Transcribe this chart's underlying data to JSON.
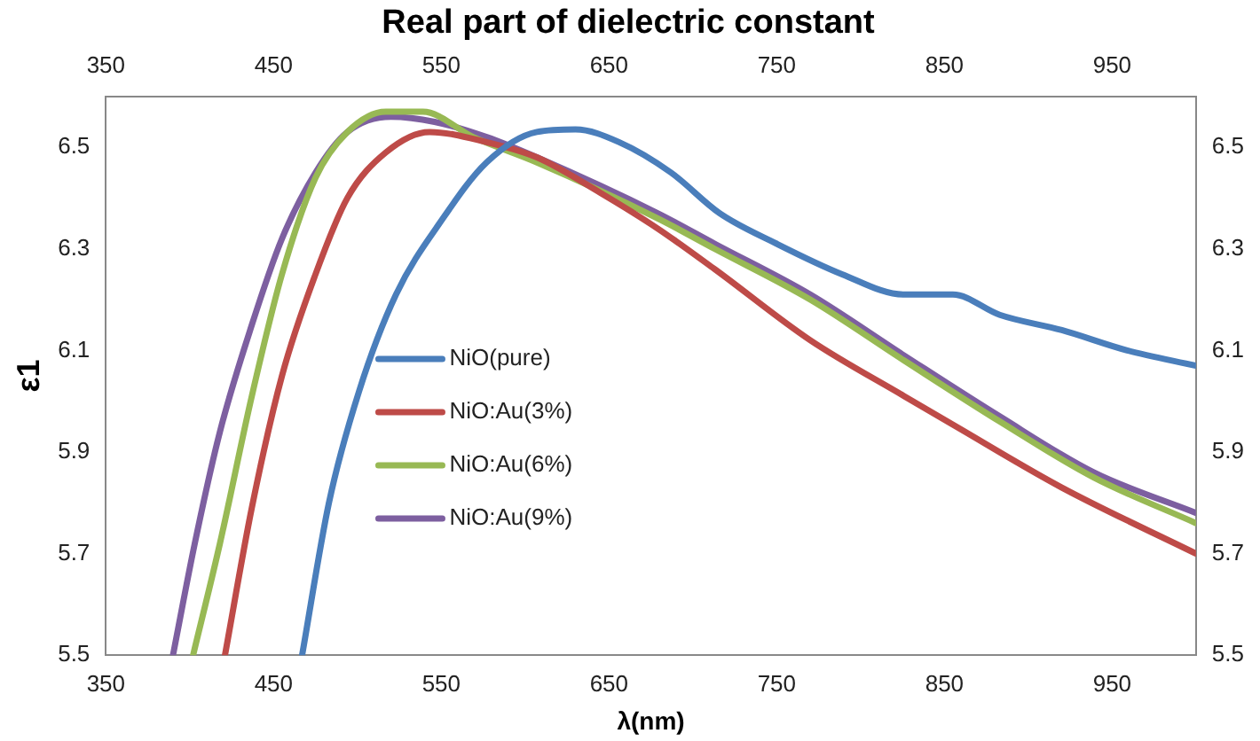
{
  "chart_data": {
    "type": "line",
    "title": "Real part of dielectric constant",
    "xlabel": "λ(nm)",
    "ylabel": "ε1",
    "xlim": [
      350,
      1000
    ],
    "xticks": [
      350,
      450,
      550,
      650,
      750,
      850,
      950
    ],
    "x2lim": [
      350,
      1000
    ],
    "x2ticks": [
      350,
      450,
      550,
      650,
      750,
      850,
      950
    ],
    "ylim": [
      5.5,
      6.6
    ],
    "yticks": [
      5.5,
      5.7,
      5.9,
      6.1,
      6.3,
      6.5
    ],
    "y2lim": [
      5.5,
      6.6
    ],
    "y2ticks": [
      5.5,
      5.7,
      5.9,
      6.1,
      6.3,
      6.5
    ],
    "grid": false,
    "legend": "left",
    "marker": "none",
    "line_style": "solid",
    "series": [
      {
        "name": "NiO(pure)",
        "color": "#4a7ebb",
        "x": [
          467,
          483,
          501,
          523,
          551,
          577,
          607,
          630,
          656,
          687,
          716,
          750,
          789,
          826,
          855,
          883,
          920,
          959,
          1000
        ],
        "values": [
          5.5,
          5.8,
          6.02,
          6.21,
          6.36,
          6.47,
          6.53,
          6.535,
          6.51,
          6.45,
          6.37,
          6.31,
          6.25,
          6.21,
          6.21,
          6.17,
          6.14,
          6.1,
          6.07
        ]
      },
      {
        "name": "NiO:Au(3%)",
        "color": "#be4b48",
        "x": [
          421,
          437,
          455,
          475,
          494,
          517,
          543,
          577,
          607,
          645,
          679,
          713,
          770,
          826,
          857,
          920,
          1000
        ],
        "values": [
          5.5,
          5.79,
          6.05,
          6.25,
          6.4,
          6.49,
          6.53,
          6.51,
          6.48,
          6.41,
          6.34,
          6.26,
          6.12,
          6.01,
          5.95,
          5.83,
          5.7
        ]
      },
      {
        "name": "NiO:Au(6%)",
        "color": "#98b954",
        "x": [
          402,
          418,
          437,
          455,
          475,
          494,
          517,
          539,
          569,
          607,
          679,
          713,
          770,
          826,
          883,
          939,
          1000
        ],
        "values": [
          5.5,
          5.72,
          6.01,
          6.25,
          6.44,
          6.53,
          6.57,
          6.57,
          6.52,
          6.47,
          6.36,
          6.3,
          6.2,
          6.08,
          5.96,
          5.85,
          5.76
        ]
      },
      {
        "name": "NiO:Au(9%)",
        "color": "#7d5fa0",
        "x": [
          390,
          403,
          418,
          437,
          455,
          475,
          494,
          520,
          546,
          577,
          607,
          679,
          713,
          770,
          826,
          883,
          939,
          1000
        ],
        "values": [
          5.5,
          5.72,
          5.94,
          6.15,
          6.32,
          6.45,
          6.53,
          6.56,
          6.55,
          6.52,
          6.48,
          6.37,
          6.31,
          6.21,
          6.09,
          5.97,
          5.86,
          5.78
        ]
      }
    ]
  }
}
